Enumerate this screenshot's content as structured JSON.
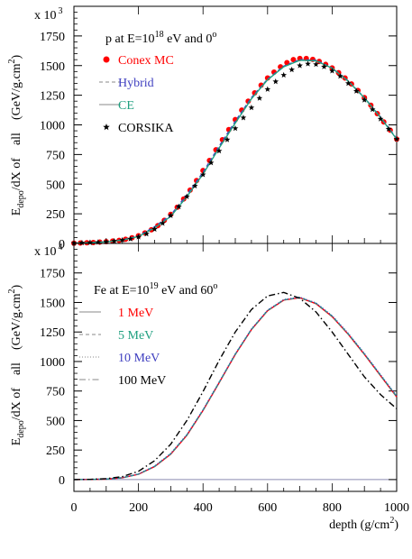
{
  "chart_data": [
    {
      "type": "scatter",
      "exponent_label": "x 10",
      "exponent_power": "3",
      "ylabel": "E_depo/dX of all (GeV/g.cm^2)",
      "ylabel_parts": {
        "pre": "E",
        "sub": "depo",
        "mid": "/dX of    all    (GeV/g.cm",
        "sup": "2",
        "post": ")"
      },
      "annotation": {
        "pre": "p at E=10",
        "sup": "18",
        "mid": " eV and 0",
        "sup2": "o"
      },
      "xlim": [
        0,
        1000
      ],
      "ylim": [
        0,
        2000
      ],
      "y_ticks": [
        0,
        250,
        500,
        750,
        1000,
        1250,
        1500,
        1750
      ],
      "y_tick_labels": [
        "0",
        "250",
        "500",
        "750",
        "1000",
        "1250",
        "1500",
        "1750"
      ],
      "legend": [
        {
          "label": "Conex MC",
          "color": "#ff0000",
          "marker": "filled-circle"
        },
        {
          "label": "Hybrid",
          "color": "#4040c0",
          "marker": "dashed-line"
        },
        {
          "label": "CE",
          "color": "#20a080",
          "marker": "solid-line"
        },
        {
          "label": "CORSIKA",
          "color": "#000000",
          "marker": "star"
        }
      ],
      "series": [
        {
          "name": "Conex MC",
          "color": "#ff0000",
          "style": "markers",
          "x": [
            0,
            20,
            40,
            60,
            80,
            100,
            120,
            140,
            160,
            180,
            200,
            220,
            240,
            260,
            280,
            300,
            320,
            340,
            360,
            380,
            400,
            420,
            440,
            460,
            480,
            500,
            520,
            540,
            560,
            580,
            600,
            620,
            640,
            660,
            680,
            700,
            720,
            740,
            760,
            780,
            800,
            820,
            840,
            860,
            880,
            900,
            920,
            940,
            960,
            980,
            1000
          ],
          "y": [
            2,
            4,
            6,
            8,
            11,
            15,
            20,
            26,
            35,
            48,
            65,
            88,
            115,
            150,
            195,
            245,
            305,
            375,
            450,
            530,
            615,
            700,
            790,
            875,
            960,
            1045,
            1125,
            1200,
            1270,
            1335,
            1395,
            1445,
            1490,
            1525,
            1550,
            1560,
            1560,
            1552,
            1535,
            1510,
            1480,
            1440,
            1395,
            1345,
            1290,
            1230,
            1165,
            1095,
            1025,
            955,
            880
          ]
        },
        {
          "name": "Hybrid",
          "color": "#4040c0",
          "style": "dashed",
          "x": [
            0,
            50,
            100,
            150,
            200,
            250,
            300,
            350,
            400,
            450,
            500,
            550,
            600,
            650,
            700,
            750,
            800,
            850,
            900,
            950,
            1000
          ],
          "y": [
            2,
            7,
            14,
            30,
            62,
            140,
            240,
            410,
            600,
            820,
            1030,
            1230,
            1385,
            1495,
            1550,
            1545,
            1480,
            1370,
            1230,
            1065,
            885
          ]
        },
        {
          "name": "CE",
          "color": "#20a080",
          "style": "solid",
          "x": [
            0,
            50,
            100,
            150,
            200,
            250,
            300,
            350,
            400,
            450,
            500,
            550,
            600,
            650,
            700,
            750,
            800,
            850,
            900,
            950,
            1000
          ],
          "y": [
            2,
            6,
            13,
            28,
            58,
            132,
            228,
            395,
            585,
            805,
            1015,
            1220,
            1380,
            1490,
            1545,
            1540,
            1478,
            1368,
            1228,
            1062,
            880
          ]
        },
        {
          "name": "CORSIKA",
          "color": "#000000",
          "style": "stars",
          "x": [
            0,
            25,
            50,
            75,
            100,
            125,
            150,
            175,
            200,
            225,
            250,
            275,
            300,
            325,
            350,
            375,
            400,
            425,
            450,
            475,
            500,
            525,
            550,
            575,
            600,
            625,
            650,
            675,
            700,
            725,
            750,
            775,
            800,
            825,
            850,
            875,
            900,
            925,
            950,
            975,
            1000
          ],
          "y": [
            3,
            5,
            7,
            10,
            15,
            20,
            28,
            38,
            55,
            80,
            120,
            170,
            235,
            310,
            395,
            485,
            580,
            680,
            780,
            875,
            970,
            1060,
            1145,
            1225,
            1300,
            1365,
            1420,
            1465,
            1500,
            1515,
            1510,
            1490,
            1455,
            1410,
            1350,
            1285,
            1210,
            1130,
            1050,
            965,
            880
          ]
        }
      ]
    },
    {
      "type": "line",
      "exponent_label": "x 10",
      "exponent_power": "4",
      "xlabel": "depth (g/cm^2)",
      "xlabel_parts": {
        "pre": "depth (g/cm",
        "sup": "2",
        "post": ")"
      },
      "ylabel": "E_depo/dX of all (GeV/g.cm^2)",
      "ylabel_parts": {
        "pre": "E",
        "sub": "depo",
        "mid": "/dX of    all    (GeV/g.cm",
        "sup": "2",
        "post": ")"
      },
      "annotation": {
        "pre": "Fe at E=10",
        "sup": "19",
        "mid": " eV and 60",
        "sup2": "o"
      },
      "xlim": [
        0,
        1000
      ],
      "ylim": [
        -100,
        2000
      ],
      "x_ticks": [
        0,
        200,
        400,
        600,
        800,
        1000
      ],
      "x_tick_labels": [
        "0",
        "200",
        "400",
        "600",
        "800",
        "1000"
      ],
      "y_ticks": [
        0,
        250,
        500,
        750,
        1000,
        1250,
        1500,
        1750
      ],
      "y_tick_labels": [
        "0",
        "250",
        "500",
        "750",
        "1000",
        "1250",
        "1500",
        "1750"
      ],
      "legend": [
        {
          "label": "1 MeV",
          "color": "#ff0000",
          "marker": "solid-line"
        },
        {
          "label": "5 MeV",
          "color": "#20a080",
          "marker": "dashed-line"
        },
        {
          "label": "10 MeV",
          "color": "#4040c0",
          "marker": "dotted-line"
        },
        {
          "label": "100 MeV",
          "color": "#000000",
          "marker": "dashdot-line"
        }
      ],
      "series": [
        {
          "name": "1 MeV",
          "color": "#ff0000",
          "style": "solid",
          "x": [
            0,
            50,
            100,
            150,
            200,
            250,
            300,
            350,
            400,
            450,
            500,
            550,
            600,
            650,
            700,
            750,
            800,
            850,
            900,
            950,
            1000
          ],
          "y": [
            0,
            1,
            4,
            15,
            45,
            110,
            215,
            375,
            585,
            820,
            1060,
            1270,
            1430,
            1520,
            1540,
            1490,
            1380,
            1230,
            1060,
            880,
            700
          ]
        },
        {
          "name": "5 MeV",
          "color": "#20a080",
          "style": "dashed",
          "x": [
            0,
            50,
            100,
            150,
            200,
            250,
            300,
            350,
            400,
            450,
            500,
            550,
            600,
            650,
            700,
            750,
            800,
            850,
            900,
            950,
            1000
          ],
          "y": [
            0,
            1,
            4,
            15,
            46,
            112,
            218,
            378,
            588,
            823,
            1062,
            1272,
            1432,
            1522,
            1542,
            1493,
            1384,
            1234,
            1064,
            884,
            704
          ]
        },
        {
          "name": "10 MeV",
          "color": "#4040c0",
          "style": "dotted",
          "x": [
            0,
            50,
            100,
            150,
            200,
            250,
            300,
            350,
            400,
            450,
            500,
            550,
            600,
            650,
            700,
            750,
            800,
            850,
            900,
            950,
            1000
          ],
          "y": [
            0,
            1,
            5,
            16,
            47,
            114,
            221,
            381,
            591,
            826,
            1065,
            1275,
            1435,
            1524,
            1544,
            1496,
            1388,
            1238,
            1068,
            888,
            708
          ]
        },
        {
          "name": "100 MeV",
          "color": "#000000",
          "style": "dashdot",
          "x": [
            0,
            50,
            100,
            150,
            200,
            250,
            300,
            350,
            400,
            450,
            500,
            550,
            600,
            650,
            700,
            750,
            800,
            850,
            900,
            950,
            1000
          ],
          "y": [
            0,
            2,
            8,
            25,
            70,
            160,
            300,
            500,
            745,
            1010,
            1250,
            1440,
            1555,
            1585,
            1535,
            1420,
            1250,
            1060,
            870,
            720,
            600
          ]
        }
      ]
    }
  ]
}
